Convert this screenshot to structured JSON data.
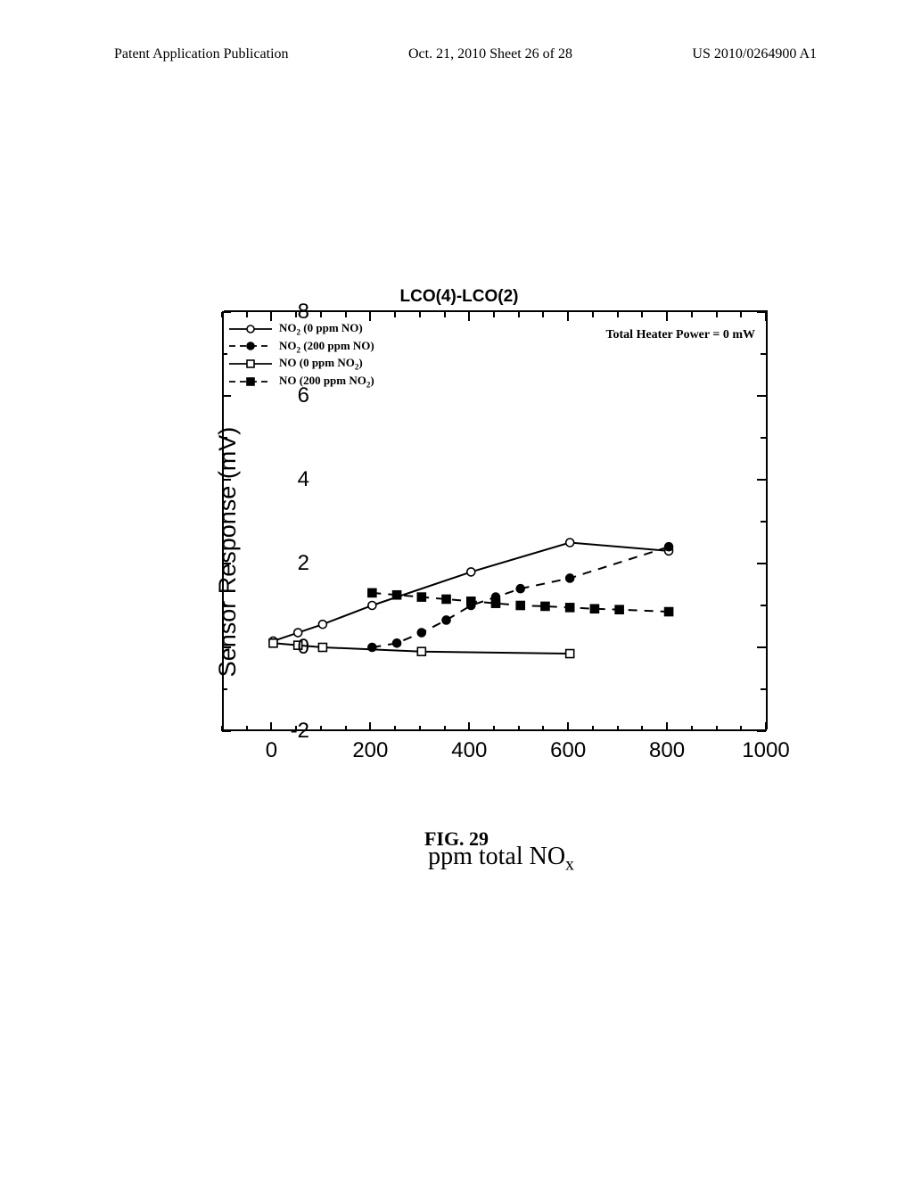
{
  "header": {
    "left": "Patent Application Publication",
    "center": "Oct. 21, 2010  Sheet 26 of 28",
    "right": "US 2010/0264900 A1"
  },
  "figure_caption": "FIG. 29",
  "chart": {
    "type": "line",
    "title": "LCO(4)-LCO(2)",
    "xlabel_html": "ppm total NO<sub>x</sub>",
    "ylabel": "Sensor Response (mV)",
    "annotation": "Total Heater Power = 0 mW",
    "xlim": [
      -100,
      1000
    ],
    "ylim": [
      -2,
      8
    ],
    "x_major": [
      0,
      200,
      400,
      600,
      800,
      1000
    ],
    "x_minor_step": 50,
    "y_major": [
      -2,
      0,
      2,
      4,
      6,
      8
    ],
    "y_minor_step": 1,
    "background_color": "#ffffff",
    "axis_color": "#000000",
    "legend": [
      {
        "label_html": "NO<sub>2</sub> (0 ppm NO)",
        "marker": "open-circle",
        "dash": "solid"
      },
      {
        "label_html": "NO<sub>2</sub> (200 ppm NO)",
        "marker": "filled-circle",
        "dash": "dash"
      },
      {
        "label_html": "NO (0 ppm NO<sub>2</sub>)",
        "marker": "open-square",
        "dash": "solid"
      },
      {
        "label_html": "NO (200 ppm NO<sub>2</sub>)",
        "marker": "filled-square",
        "dash": "dash"
      }
    ],
    "series": [
      {
        "name": "NO2-0ppmNO",
        "marker": "open-circle",
        "dash": "solid",
        "color": "#000000",
        "points": [
          [
            0,
            0.15
          ],
          [
            50,
            0.35
          ],
          [
            100,
            0.55
          ],
          [
            200,
            1.0
          ],
          [
            400,
            1.8
          ],
          [
            600,
            2.5
          ],
          [
            800,
            2.3
          ]
        ]
      },
      {
        "name": "NO2-200ppmNO",
        "marker": "filled-circle",
        "dash": "dash",
        "color": "#000000",
        "points": [
          [
            200,
            0.0
          ],
          [
            250,
            0.1
          ],
          [
            300,
            0.35
          ],
          [
            350,
            0.65
          ],
          [
            400,
            1.0
          ],
          [
            450,
            1.2
          ],
          [
            500,
            1.4
          ],
          [
            600,
            1.65
          ],
          [
            800,
            2.4
          ]
        ]
      },
      {
        "name": "NO-0ppmNO2",
        "marker": "open-square",
        "dash": "solid",
        "color": "#000000",
        "points": [
          [
            0,
            0.1
          ],
          [
            50,
            0.05
          ],
          [
            100,
            0.0
          ],
          [
            300,
            -0.1
          ],
          [
            600,
            -0.15
          ]
        ]
      },
      {
        "name": "NO-200ppmNO2",
        "marker": "filled-square",
        "dash": "dash",
        "color": "#000000",
        "points": [
          [
            200,
            1.3
          ],
          [
            250,
            1.25
          ],
          [
            300,
            1.2
          ],
          [
            350,
            1.15
          ],
          [
            400,
            1.1
          ],
          [
            450,
            1.05
          ],
          [
            500,
            1.0
          ],
          [
            550,
            0.98
          ],
          [
            600,
            0.95
          ],
          [
            650,
            0.92
          ],
          [
            700,
            0.9
          ],
          [
            800,
            0.85
          ]
        ]
      }
    ],
    "line_width": 2,
    "marker_size": 9
  }
}
